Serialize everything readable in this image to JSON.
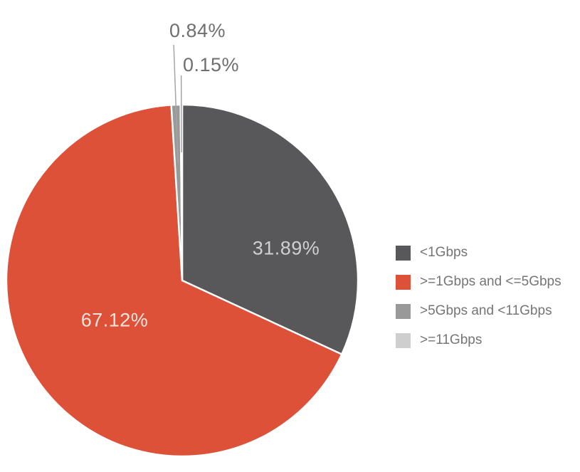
{
  "chart_data": {
    "type": "pie",
    "unit": "%",
    "slices": [
      {
        "label": "<1Gbps",
        "value": 31.89,
        "value_label": "31.89%",
        "color": "#58585a"
      },
      {
        "label": ">=1Gbps and <=5Gbps",
        "value": 67.12,
        "value_label": "67.12%",
        "color": "#dc5138"
      },
      {
        "label": ">5Gbps and <11Gbps",
        "value": 0.84,
        "value_label": "0.84%",
        "color": "#999999"
      },
      {
        "label": ">=11Gbps",
        "value": 0.15,
        "value_label": "0.15%",
        "color": "#cecece"
      }
    ],
    "start_angle_deg": 0,
    "direction": "clockwise",
    "legend_position": "right",
    "grid": "off",
    "background_color": "#ffffff",
    "slice_border_color": "#ffffff",
    "callout_line_color": "#a5a5a5"
  }
}
